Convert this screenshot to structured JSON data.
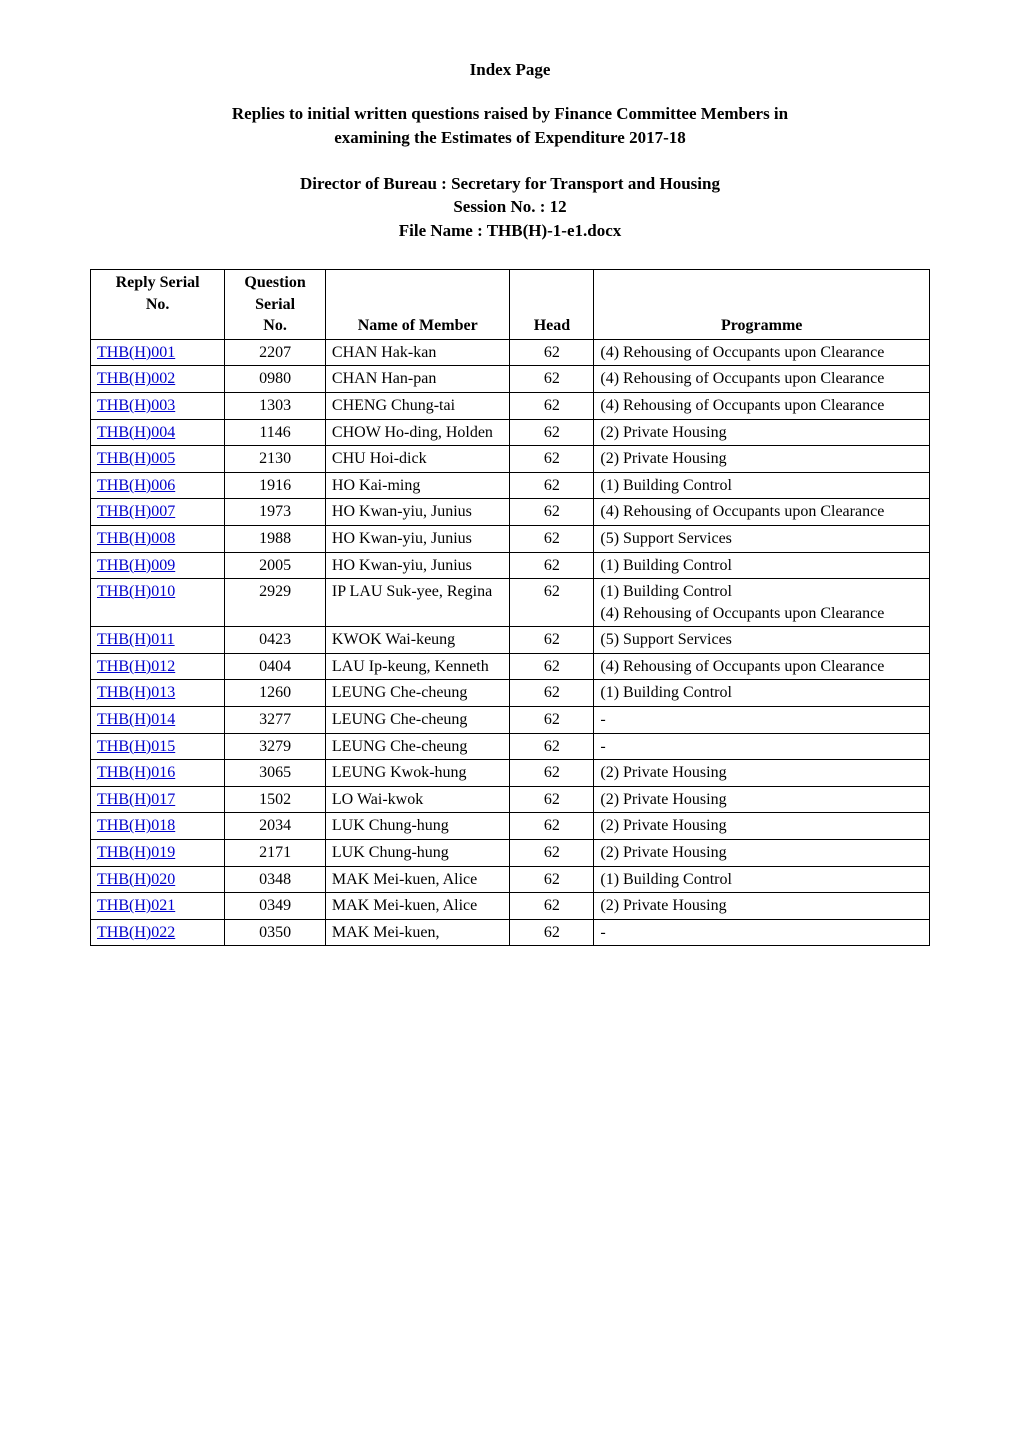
{
  "page": {
    "title": "Index Page",
    "subtitle_line1": "Replies to initial written questions raised by Finance Committee Members in",
    "subtitle_line2": "examining the Estimates of Expenditure 2017-18",
    "director_line": "Director of Bureau : Secretary for Transport and Housing",
    "session_line": "Session No. : 12",
    "file_line": "File Name : THB(H)-1-e1.docx"
  },
  "table": {
    "headers": {
      "reply_serial_l1": "Reply Serial",
      "reply_serial_l2": "No.",
      "question_serial_l1": "Question",
      "question_serial_l2": "Serial",
      "question_serial_l3": "No.",
      "member": "Name of Member",
      "head": "Head",
      "programme": "Programme"
    },
    "colors": {
      "link_color": "#0000cc",
      "border_color": "#000000",
      "text_color": "#000000",
      "background_color": "#ffffff"
    },
    "rows": [
      {
        "reply": "THB(H)001",
        "qs": "2207",
        "member": "CHAN Hak-kan",
        "head": "62",
        "programme": "(4) Rehousing of Occupants upon Clearance"
      },
      {
        "reply": "THB(H)002",
        "qs": "0980",
        "member": "CHAN Han-pan",
        "head": "62",
        "programme": "(4) Rehousing of Occupants upon Clearance"
      },
      {
        "reply": "THB(H)003",
        "qs": "1303",
        "member": "CHENG Chung-tai",
        "head": "62",
        "programme": "(4) Rehousing of Occupants upon Clearance"
      },
      {
        "reply": "THB(H)004",
        "qs": "1146",
        "member": "CHOW Ho-ding, Holden",
        "head": "62",
        "programme": "(2) Private Housing"
      },
      {
        "reply": "THB(H)005",
        "qs": "2130",
        "member": "CHU Hoi-dick",
        "head": "62",
        "programme": "(2) Private Housing"
      },
      {
        "reply": "THB(H)006",
        "qs": "1916",
        "member": "HO Kai-ming",
        "head": "62",
        "programme": "(1) Building Control"
      },
      {
        "reply": "THB(H)007",
        "qs": "1973",
        "member": "HO Kwan-yiu, Junius",
        "head": "62",
        "programme": "(4) Rehousing of Occupants upon Clearance"
      },
      {
        "reply": "THB(H)008",
        "qs": "1988",
        "member": "HO Kwan-yiu, Junius",
        "head": "62",
        "programme": "(5) Support Services"
      },
      {
        "reply": "THB(H)009",
        "qs": "2005",
        "member": "HO Kwan-yiu, Junius",
        "head": "62",
        "programme": "(1) Building Control"
      },
      {
        "reply": "THB(H)010",
        "qs": "2929",
        "member": "IP LAU Suk-yee, Regina",
        "head": "62",
        "programme": "(1) Building Control\n(4) Rehousing of Occupants upon Clearance"
      },
      {
        "reply": "THB(H)011",
        "qs": "0423",
        "member": "KWOK Wai-keung",
        "head": "62",
        "programme": "(5) Support Services"
      },
      {
        "reply": "THB(H)012",
        "qs": "0404",
        "member": "LAU Ip-keung, Kenneth",
        "head": "62",
        "programme": "(4) Rehousing of Occupants upon Clearance"
      },
      {
        "reply": "THB(H)013",
        "qs": "1260",
        "member": "LEUNG Che-cheung",
        "head": "62",
        "programme": "(1) Building Control"
      },
      {
        "reply": "THB(H)014",
        "qs": "3277",
        "member": "LEUNG Che-cheung",
        "head": "62",
        "programme": "-"
      },
      {
        "reply": "THB(H)015",
        "qs": "3279",
        "member": "LEUNG Che-cheung",
        "head": "62",
        "programme": "-"
      },
      {
        "reply": "THB(H)016",
        "qs": "3065",
        "member": "LEUNG Kwok-hung",
        "head": "62",
        "programme": "(2) Private Housing"
      },
      {
        "reply": "THB(H)017",
        "qs": "1502",
        "member": "LO Wai-kwok",
        "head": "62",
        "programme": "(2) Private Housing"
      },
      {
        "reply": "THB(H)018",
        "qs": "2034",
        "member": "LUK Chung-hung",
        "head": "62",
        "programme": "(2) Private Housing"
      },
      {
        "reply": "THB(H)019",
        "qs": "2171",
        "member": "LUK Chung-hung",
        "head": "62",
        "programme": "(2) Private Housing"
      },
      {
        "reply": "THB(H)020",
        "qs": "0348",
        "member": "MAK Mei-kuen, Alice",
        "head": "62",
        "programme": "(1) Building Control"
      },
      {
        "reply": "THB(H)021",
        "qs": "0349",
        "member": "MAK Mei-kuen, Alice",
        "head": "62",
        "programme": "(2) Private Housing"
      },
      {
        "reply": "THB(H)022",
        "qs": "0350",
        "member": "MAK Mei-kuen,",
        "head": "62",
        "programme": "-"
      }
    ]
  }
}
